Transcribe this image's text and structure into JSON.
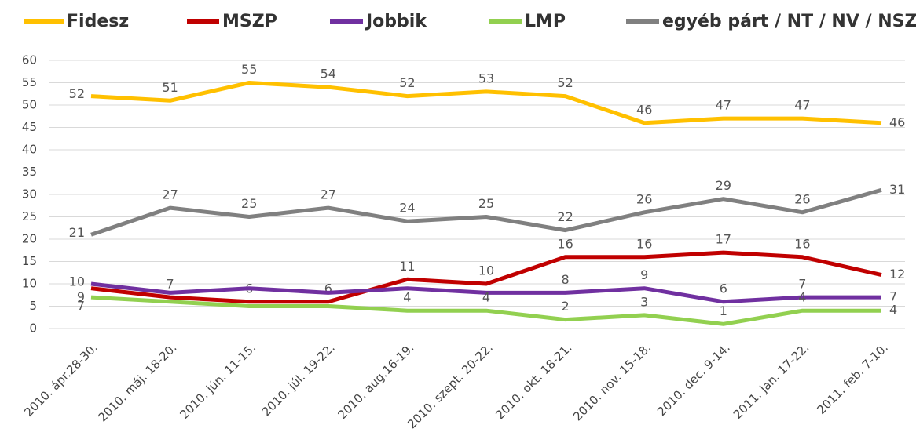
{
  "chart_data": {
    "type": "line",
    "categories": [
      "2010. ápr.28-30.",
      "2010. máj. 18-20.",
      "2010. jún. 11-15.",
      "2010. júl. 19-22.",
      "2010. aug.16-19.",
      "2010. szept. 20-22.",
      "2010. okt. 18-21.",
      "2010. nov. 15-18.",
      "2010. dec. 9-14.",
      "2011. jan. 17-22.",
      "2011. feb. 7-10."
    ],
    "series": [
      {
        "name": "Fidesz",
        "color": "#ffc000",
        "values": [
          52,
          51,
          55,
          54,
          52,
          53,
          52,
          46,
          47,
          47,
          46
        ],
        "value_labels": [
          "52",
          "51",
          "55",
          "54",
          "52",
          "53",
          "52",
          "46",
          "47",
          "47",
          "46"
        ]
      },
      {
        "name": "MSZP",
        "color": "#c00000",
        "values": [
          9,
          7,
          6,
          6,
          11,
          10,
          16,
          16,
          17,
          16,
          12
        ],
        "value_labels": [
          "9",
          "7",
          "6",
          "6",
          "11",
          "10",
          "16",
          "16",
          "17",
          "16",
          "12"
        ]
      },
      {
        "name": "Jobbik",
        "color": "#7030a0",
        "values": [
          10,
          8,
          9,
          8,
          9,
          8,
          8,
          9,
          6,
          7,
          7
        ],
        "value_labels": [
          "10",
          null,
          null,
          null,
          null,
          null,
          "8",
          "9",
          "6",
          "7",
          "7"
        ]
      },
      {
        "name": "LMP",
        "color": "#92d050",
        "values": [
          7,
          6,
          5,
          5,
          4,
          4,
          2,
          3,
          1,
          4,
          4
        ],
        "value_labels": [
          "7",
          null,
          null,
          null,
          "4",
          "4",
          "2",
          "3",
          "1",
          "4",
          "4"
        ]
      },
      {
        "name": "egyéb párt / NT / NV / NSZ",
        "color": "#808080",
        "values": [
          21,
          27,
          25,
          27,
          24,
          25,
          22,
          26,
          29,
          26,
          31
        ],
        "value_labels": [
          "21",
          "27",
          "25",
          "27",
          "24",
          "25",
          "22",
          "26",
          "29",
          "26",
          "31"
        ]
      }
    ],
    "ylim": [
      0,
      60
    ],
    "yticks": [
      0,
      5,
      10,
      15,
      20,
      25,
      30,
      35,
      40,
      45,
      50,
      55,
      60
    ],
    "grid": true,
    "legend": "top"
  }
}
